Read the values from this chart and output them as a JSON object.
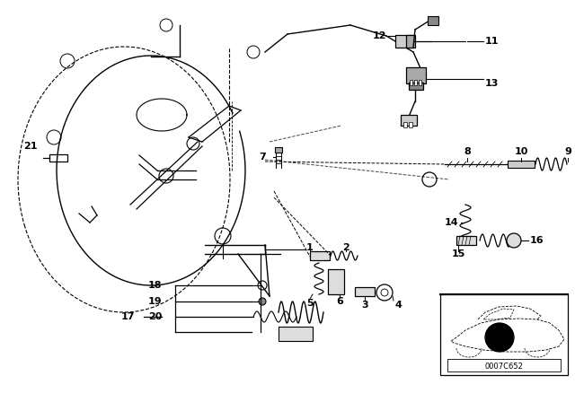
{
  "background_color": "#ffffff",
  "figsize": [
    6.4,
    4.48
  ],
  "dpi": 100,
  "diagram_code": "0007C652",
  "label_fontsize": 8,
  "label_bold": true
}
